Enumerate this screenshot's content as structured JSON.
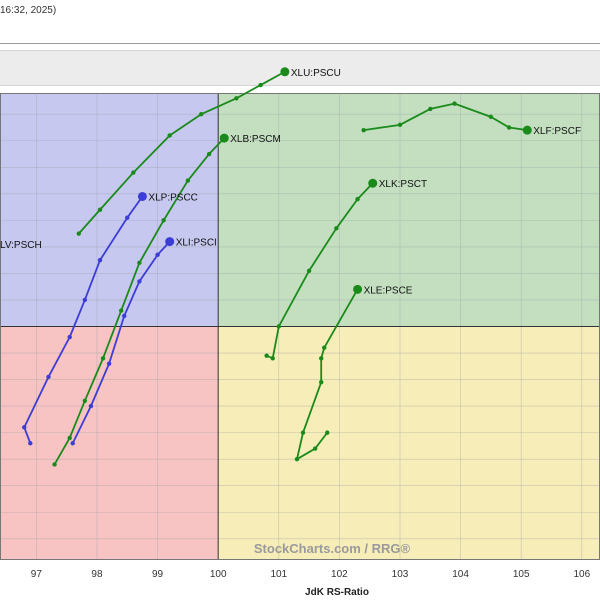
{
  "header": {
    "date_text": "16:32, 2025)"
  },
  "chart_data": {
    "type": "scatter",
    "xlabel": "JdK RS-Ratio",
    "xlim": [
      96.4,
      106.3
    ],
    "ylim": [
      95.6,
      104.4
    ],
    "x_ticks": [
      97,
      98,
      99,
      100,
      101,
      102,
      103,
      104,
      105,
      106
    ],
    "center": [
      100,
      100
    ],
    "quadrant_colors": {
      "leading": "#c3dfc0",
      "weakening": "#f7edb8",
      "lagging": "#f7c3c3",
      "improving": "#c6c8ef"
    },
    "grid": true,
    "watermark": "StockCharts.com / RRG®",
    "series": [
      {
        "name": "XLU:PSCU",
        "color": "#1a8a1a",
        "points": [
          [
            97.7,
            101.75
          ],
          [
            98.05,
            102.2
          ],
          [
            98.6,
            102.9
          ],
          [
            99.2,
            103.6
          ],
          [
            99.72,
            104.0
          ],
          [
            100.3,
            104.3
          ],
          [
            100.7,
            104.55
          ],
          [
            101.1,
            104.8
          ]
        ]
      },
      {
        "name": "XLB:PSCM",
        "color": "#1a8a1a",
        "points": [
          [
            97.3,
            97.4
          ],
          [
            97.55,
            97.9
          ],
          [
            97.8,
            98.6
          ],
          [
            98.1,
            99.4
          ],
          [
            98.4,
            100.3
          ],
          [
            98.7,
            101.2
          ],
          [
            99.1,
            102.0
          ],
          [
            99.5,
            102.75
          ],
          [
            99.85,
            103.25
          ],
          [
            100.1,
            103.55
          ]
        ]
      },
      {
        "name": "XLF:PSCF",
        "color": "#1a8a1a",
        "points": [
          [
            102.4,
            103.7
          ],
          [
            103.0,
            103.8
          ],
          [
            103.5,
            104.1
          ],
          [
            103.9,
            104.2
          ],
          [
            104.5,
            103.95
          ],
          [
            104.8,
            103.75
          ],
          [
            105.1,
            103.7
          ]
        ]
      },
      {
        "name": "XLK:PSCT",
        "color": "#1a8a1a",
        "points": [
          [
            100.8,
            99.45
          ],
          [
            100.9,
            99.4
          ],
          [
            101.0,
            100.0
          ],
          [
            101.5,
            101.05
          ],
          [
            101.95,
            101.85
          ],
          [
            102.3,
            102.4
          ],
          [
            102.55,
            102.7
          ]
        ]
      },
      {
        "name": "XLE:PSCE",
        "color": "#1a8a1a",
        "points": [
          [
            101.8,
            98.0
          ],
          [
            101.6,
            97.7
          ],
          [
            101.3,
            97.5
          ],
          [
            101.4,
            98.0
          ],
          [
            101.7,
            98.95
          ],
          [
            101.7,
            99.4
          ],
          [
            101.75,
            99.6
          ],
          [
            102.3,
            100.7
          ]
        ]
      },
      {
        "name": "XLP:PSCC",
        "color": "#3c3cd6",
        "points": [
          [
            96.9,
            97.8
          ],
          [
            96.8,
            98.1
          ],
          [
            97.2,
            99.05
          ],
          [
            97.55,
            99.8
          ],
          [
            97.8,
            100.5
          ],
          [
            98.05,
            101.25
          ],
          [
            98.5,
            102.05
          ],
          [
            98.75,
            102.45
          ]
        ]
      },
      {
        "name": "XLI:PSCI",
        "color": "#3c3cd6",
        "points": [
          [
            97.6,
            97.8
          ],
          [
            97.9,
            98.5
          ],
          [
            98.2,
            99.3
          ],
          [
            98.45,
            100.2
          ],
          [
            98.7,
            100.85
          ],
          [
            99.0,
            101.35
          ],
          [
            99.2,
            101.6
          ]
        ]
      },
      {
        "name": "XLV:PSCH",
        "label": "LV:PSCH",
        "color": "#3c3cd6",
        "points": [],
        "label_at": [
          96.4,
          101.55
        ]
      }
    ]
  }
}
